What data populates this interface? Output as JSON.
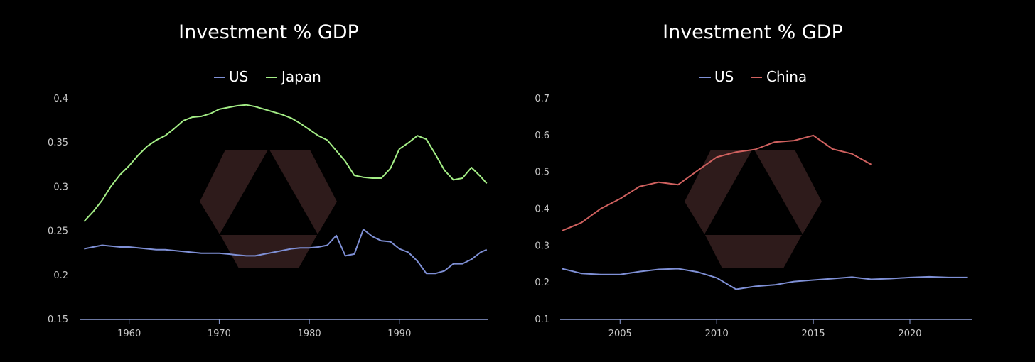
{
  "charts": [
    {
      "type": "line",
      "title": "Investment % GDP",
      "xlabel": "",
      "ylabel": "",
      "xlim": [
        1954.5,
        1999.8
      ],
      "ylim": [
        0.15,
        0.4
      ],
      "y_ticks": [
        "0.4",
        "0.35",
        "0.3",
        "0.25",
        "0.2",
        "0.15"
      ],
      "y_tick_values": [
        0.4,
        0.35,
        0.3,
        0.25,
        0.2,
        0.15
      ],
      "x_ticks": [
        "1960",
        "1970",
        "1980",
        "1990"
      ],
      "x_tick_values": [
        1960,
        1970,
        1980,
        1990
      ],
      "grid": false,
      "legend_position": "top-center",
      "series": [
        {
          "name": "US",
          "color": "#7f90d6",
          "x": [
            1955,
            1956,
            1957,
            1958,
            1959,
            1960,
            1961,
            1962,
            1963,
            1964,
            1965,
            1966,
            1967,
            1968,
            1969,
            1970,
            1971,
            1972,
            1973,
            1974,
            1975,
            1976,
            1977,
            1978,
            1979,
            1980,
            1981,
            1982,
            1983,
            1984,
            1985,
            1986,
            1987,
            1988,
            1989,
            1990,
            1991,
            1992,
            1993,
            1994,
            1995,
            1996,
            1997,
            1998,
            1999,
            1999.7
          ],
          "y": [
            0.23,
            0.232,
            0.234,
            0.233,
            0.232,
            0.232,
            0.231,
            0.23,
            0.229,
            0.229,
            0.228,
            0.227,
            0.226,
            0.225,
            0.225,
            0.225,
            0.224,
            0.223,
            0.222,
            0.222,
            0.224,
            0.226,
            0.228,
            0.23,
            0.231,
            0.231,
            0.232,
            0.234,
            0.245,
            0.222,
            0.224,
            0.252,
            0.244,
            0.239,
            0.238,
            0.23,
            0.226,
            0.216,
            0.202,
            0.202,
            0.205,
            0.213,
            0.213,
            0.218,
            0.226,
            0.229
          ]
        },
        {
          "name": "Japan",
          "color": "#a4ee86",
          "x": [
            1955,
            1956,
            1957,
            1958,
            1959,
            1960,
            1961,
            1962,
            1963,
            1964,
            1965,
            1966,
            1967,
            1968,
            1969,
            1970,
            1971,
            1972,
            1973,
            1974,
            1975,
            1976,
            1977,
            1978,
            1979,
            1980,
            1981,
            1982,
            1983,
            1984,
            1985,
            1986,
            1987,
            1988,
            1989,
            1990,
            1991,
            1992,
            1993,
            1994,
            1995,
            1996,
            1997,
            1998,
            1999,
            1999.7
          ],
          "y": [
            0.261,
            0.272,
            0.285,
            0.301,
            0.314,
            0.324,
            0.336,
            0.346,
            0.353,
            0.358,
            0.366,
            0.375,
            0.379,
            0.38,
            0.383,
            0.388,
            0.39,
            0.392,
            0.393,
            0.391,
            0.388,
            0.385,
            0.382,
            0.378,
            0.372,
            0.365,
            0.358,
            0.353,
            0.341,
            0.329,
            0.313,
            0.311,
            0.31,
            0.31,
            0.321,
            0.343,
            0.35,
            0.358,
            0.354,
            0.337,
            0.319,
            0.308,
            0.31,
            0.322,
            0.312,
            0.304
          ]
        }
      ]
    },
    {
      "type": "line",
      "title": "Investment % GDP",
      "xlabel": "",
      "ylabel": "",
      "xlim": [
        2001.9,
        2023.2
      ],
      "ylim": [
        0.1,
        0.7
      ],
      "y_ticks": [
        "0.7",
        "0.6",
        "0.5",
        "0.4",
        "0.3",
        "0.2",
        "0.1"
      ],
      "y_tick_values": [
        0.7,
        0.6,
        0.5,
        0.4,
        0.3,
        0.2,
        0.1
      ],
      "x_ticks": [
        "2005",
        "2010",
        "2015",
        "2020"
      ],
      "x_tick_values": [
        2005,
        2010,
        2015,
        2020
      ],
      "grid": false,
      "legend_position": "top-center",
      "series": [
        {
          "name": "US",
          "color": "#7f90d6",
          "x": [
            2002,
            2003,
            2004,
            2005,
            2006,
            2007,
            2008,
            2009,
            2010,
            2011,
            2012,
            2013,
            2014,
            2015,
            2016,
            2017,
            2018,
            2019,
            2020,
            2021,
            2022,
            2023
          ],
          "y": [
            0.238,
            0.225,
            0.222,
            0.222,
            0.23,
            0.236,
            0.238,
            0.229,
            0.213,
            0.182,
            0.19,
            0.194,
            0.203,
            0.207,
            0.211,
            0.215,
            0.209,
            0.211,
            0.214,
            0.216,
            0.214,
            0.214
          ]
        },
        {
          "name": "China",
          "color": "#d0615f",
          "x": [
            2002,
            2003,
            2004,
            2005,
            2006,
            2007,
            2008,
            2009,
            2010,
            2011,
            2012,
            2013,
            2014,
            2015,
            2016,
            2017,
            2018
          ],
          "y": [
            0.341,
            0.363,
            0.401,
            0.428,
            0.461,
            0.473,
            0.466,
            0.504,
            0.541,
            0.555,
            0.562,
            0.582,
            0.586,
            0.6,
            0.563,
            0.55,
            0.521
          ]
        }
      ]
    }
  ]
}
